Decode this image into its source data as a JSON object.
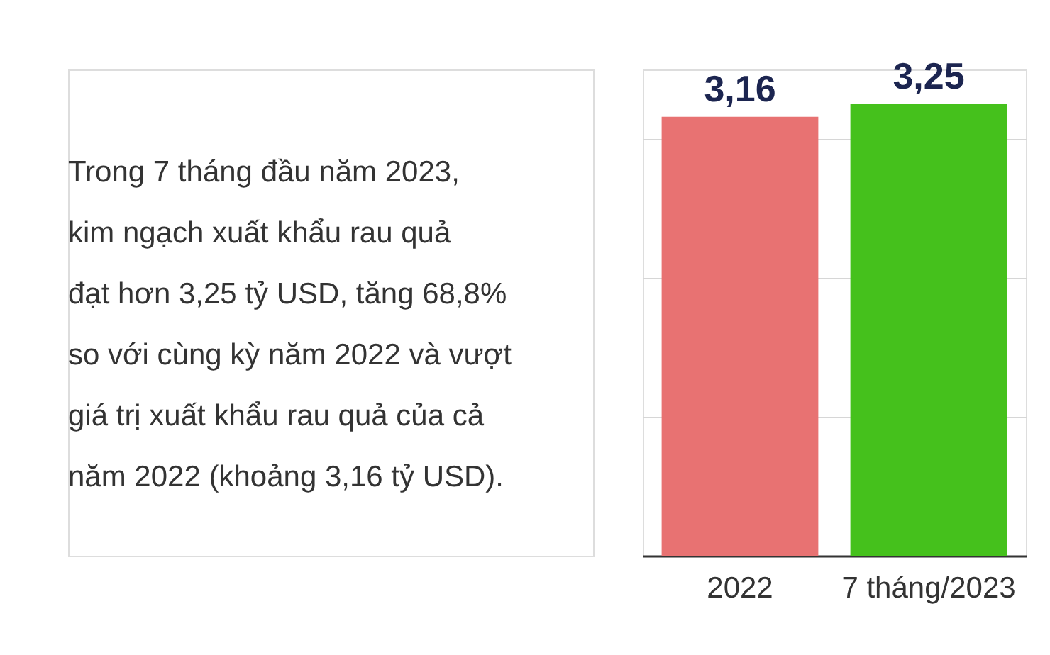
{
  "chart_data": {
    "type": "bar",
    "categories": [
      "2022",
      "7 tháng/2023"
    ],
    "values": [
      3.16,
      3.25
    ],
    "value_labels": [
      "3,16",
      "3,25"
    ],
    "colors": [
      "#e87272",
      "#45c11c"
    ],
    "grid": "y",
    "tick_labels": "x",
    "annotations": [
      "Trong 7 tháng đầu năm 2023,\nkim ngạch xuất khẩu rau quả\nđạt hơn 3,25 tỷ USD, tăng 68,8%\nso với cùng kỳ năm 2022 và vượt\ngiá trị xuất khẩu rau quả của cả\nnăm 2022 (khoảng 3,16 tỷ USD)."
    ]
  }
}
